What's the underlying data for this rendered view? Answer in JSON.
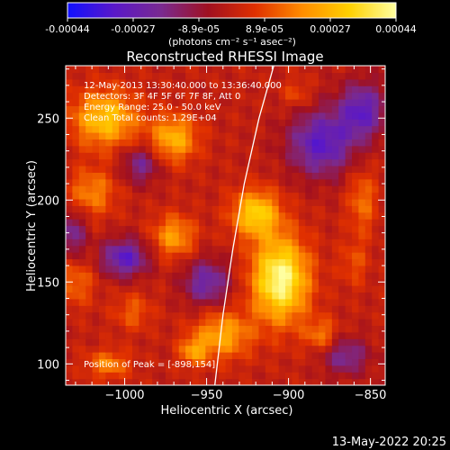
{
  "colorbar": {
    "tick_labels": [
      "-0.00044",
      "-0.00027",
      "-8.9e-05",
      "8.9e-05",
      "0.00027",
      "0.00044"
    ],
    "unit_label": "(photons cm⁻² s⁻¹ asec⁻²)",
    "colors": [
      "#1010ff",
      "#5a18c8",
      "#7a2a90",
      "#a01020",
      "#e03000",
      "#ff8c00",
      "#ffd000",
      "#ffffa0"
    ]
  },
  "chart_data": {
    "type": "heatmap",
    "title": "Reconstructed RHESSI Image",
    "xlabel": "Heliocentric X (arcsec)",
    "ylabel": "Heliocentric Y (arcsec)",
    "xlim": [
      -1036,
      -841
    ],
    "ylim": [
      87,
      282
    ],
    "x_ticks": [
      -1000,
      -950,
      -900,
      -850
    ],
    "x_tick_labels": [
      "−1000",
      "−950",
      "−900",
      "−850"
    ],
    "y_ticks": [
      100,
      150,
      200,
      250
    ],
    "y_tick_labels": [
      "100",
      "150",
      "200",
      "250"
    ],
    "vmin": -0.00044,
    "vmax": 0.00044,
    "grid": false,
    "peak": {
      "x": -898,
      "y": 154
    },
    "limb_curve": [
      [
        -945,
        87
      ],
      [
        -940,
        130
      ],
      [
        -934,
        170
      ],
      [
        -927,
        210
      ],
      [
        -918,
        250
      ],
      [
        -909,
        282
      ]
    ],
    "blobs": [
      {
        "x": -905,
        "y": 152,
        "sx": 12,
        "sy": 18,
        "a": 0.00044
      },
      {
        "x": -920,
        "y": 192,
        "sx": 10,
        "sy": 10,
        "a": 0.00032
      },
      {
        "x": -1012,
        "y": 250,
        "sx": 14,
        "sy": 12,
        "a": 0.0003
      },
      {
        "x": -1020,
        "y": 205,
        "sx": 10,
        "sy": 10,
        "a": 0.00018
      },
      {
        "x": -970,
        "y": 178,
        "sx": 9,
        "sy": 9,
        "a": 0.00022
      },
      {
        "x": -970,
        "y": 238,
        "sx": 10,
        "sy": 10,
        "a": 0.00026
      },
      {
        "x": -940,
        "y": 118,
        "sx": 12,
        "sy": 10,
        "a": 0.00024
      },
      {
        "x": -1010,
        "y": 100,
        "sx": 9,
        "sy": 6,
        "a": 0.00018
      },
      {
        "x": -880,
        "y": 118,
        "sx": 7,
        "sy": 7,
        "a": 0.00016
      },
      {
        "x": -855,
        "y": 200,
        "sx": 6,
        "sy": 14,
        "a": 0.00015
      },
      {
        "x": -860,
        "y": 162,
        "sx": 6,
        "sy": 10,
        "a": 0.0001
      },
      {
        "x": -895,
        "y": 265,
        "sx": 6,
        "sy": 6,
        "a": 0.0001
      },
      {
        "x": -1030,
        "y": 150,
        "sx": 8,
        "sy": 10,
        "a": 0.00014
      },
      {
        "x": -995,
        "y": 132,
        "sx": 8,
        "sy": 8,
        "a": 0.00012
      },
      {
        "x": -958,
        "y": 108,
        "sx": 6,
        "sy": 6,
        "a": 0.0002
      },
      {
        "x": -1000,
        "y": 165,
        "sx": 10,
        "sy": 8,
        "a": -0.0003
      },
      {
        "x": -880,
        "y": 235,
        "sx": 14,
        "sy": 14,
        "a": -0.0003
      },
      {
        "x": -950,
        "y": 150,
        "sx": 10,
        "sy": 10,
        "a": -0.00024
      },
      {
        "x": -990,
        "y": 222,
        "sx": 8,
        "sy": 8,
        "a": -0.0002
      },
      {
        "x": -855,
        "y": 255,
        "sx": 10,
        "sy": 12,
        "a": -0.00028
      },
      {
        "x": -865,
        "y": 105,
        "sx": 10,
        "sy": 8,
        "a": -0.0002
      },
      {
        "x": -1032,
        "y": 180,
        "sx": 6,
        "sy": 10,
        "a": -0.0002
      }
    ]
  },
  "info_lines": [
    "12-May-2013 13:30:40.000 to 13:36:40.000",
    "Detectors: 3F 4F 5F 6F 7F 8F, Att 0",
    "Energy Range: 25.0 - 50.0 keV",
    "Clean    Total counts: 1.29E+04"
  ],
  "peak_label": "Position of Peak = [-898,154]",
  "footer_timestamp": "13-May-2022 20:25"
}
